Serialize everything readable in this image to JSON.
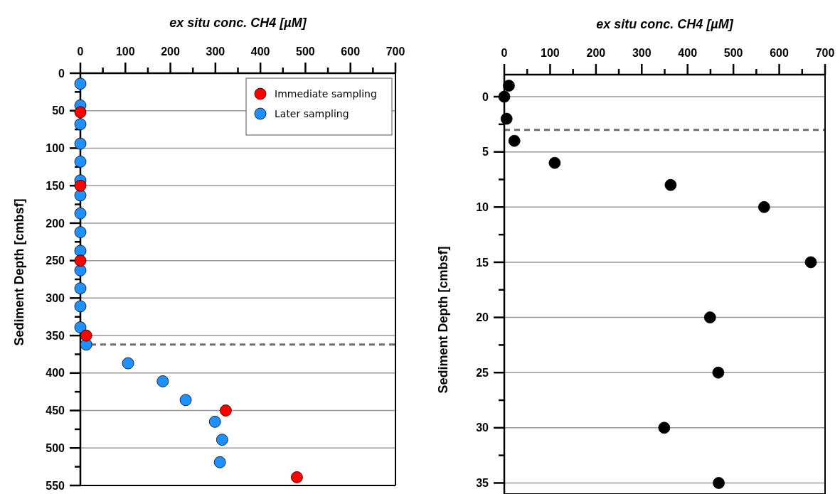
{
  "chart_data": [
    {
      "type": "scatter",
      "xlabel": "ex situ conc. CH4 [µM]",
      "ylabel": "Sediment Depth [cmbsf]",
      "marker": "circle",
      "grid": "y",
      "legend": "top right",
      "xlim": [
        0,
        700
      ],
      "xticks": [
        0,
        {
          "value": 50,
          "label": null
        },
        100,
        {
          "value": 150,
          "label": null
        },
        200,
        {
          "value": 250,
          "label": null
        },
        300,
        {
          "value": 350,
          "label": null
        },
        400,
        {
          "value": 450,
          "label": null
        },
        500,
        {
          "value": 550,
          "label": null
        },
        600,
        {
          "value": 650,
          "label": null
        },
        700
      ],
      "ylim": [
        550,
        0
      ],
      "yticks": [
        0,
        {
          "value": 25,
          "label": null
        },
        50,
        {
          "value": 75,
          "label": null
        },
        100,
        {
          "value": 125,
          "label": null
        },
        150,
        {
          "value": 175,
          "label": null
        },
        200,
        {
          "value": 225,
          "label": null
        },
        250,
        {
          "value": 275,
          "label": null
        },
        300,
        {
          "value": 325,
          "label": null
        },
        350,
        {
          "value": 375,
          "label": null
        },
        400,
        {
          "value": 425,
          "label": null
        },
        450,
        {
          "value": 475,
          "label": null
        },
        500,
        {
          "value": 525,
          "label": null
        },
        550
      ],
      "ref_lines": [
        {
          "axis": "y",
          "value": 362,
          "color": "#707070",
          "line_style": "dashed"
        }
      ],
      "series": [
        {
          "name": "Later sampling",
          "color": "#1e90ff",
          "x": [
            0,
            0,
            0,
            0,
            0,
            0,
            0,
            0,
            0,
            0,
            0,
            0,
            0,
            0,
            13,
            106,
            183,
            234,
            299,
            315,
            310
          ],
          "values": [
            14,
            43,
            68,
            94,
            118,
            143,
            163,
            187,
            212,
            237,
            263,
            287,
            311,
            339,
            362,
            387,
            411,
            436,
            465,
            489,
            519
          ]
        },
        {
          "name": "Immediate sampling",
          "color": "#ff0000",
          "x": [
            0,
            0,
            0,
            13,
            323,
            481
          ],
          "values": [
            52,
            150,
            250,
            350,
            450,
            539
          ]
        }
      ]
    },
    {
      "type": "scatter",
      "xlabel": "ex situ conc. CH4 [µM]",
      "ylabel": "Sediment Depth [cmbsf]",
      "marker": "circle",
      "grid": "y",
      "xlim": [
        0,
        700
      ],
      "xticks": [
        0,
        {
          "value": 50,
          "label": null
        },
        100,
        {
          "value": 150,
          "label": null
        },
        200,
        {
          "value": 250,
          "label": null
        },
        300,
        {
          "value": 350,
          "label": null
        },
        400,
        {
          "value": 450,
          "label": null
        },
        500,
        {
          "value": 550,
          "label": null
        },
        600,
        {
          "value": 650,
          "label": null
        },
        700
      ],
      "ylim": [
        36,
        -2
      ],
      "yticks": [
        0,
        {
          "value": 2.5,
          "label": null
        },
        5,
        {
          "value": 7.5,
          "label": null
        },
        10,
        {
          "value": 12.5,
          "label": null
        },
        15,
        {
          "value": 17.5,
          "label": null
        },
        20,
        {
          "value": 22.5,
          "label": null
        },
        25,
        {
          "value": 27.5,
          "label": null
        },
        30,
        {
          "value": 32.5,
          "label": null
        },
        35
      ],
      "ref_lines": [
        {
          "axis": "y",
          "value": 3,
          "color": "#707070",
          "line_style": "dashed"
        }
      ],
      "series": [
        {
          "color": "#000000",
          "x": [
            10,
            0,
            5,
            22,
            110,
            363,
            567,
            669,
            449,
            467,
            349,
            468
          ],
          "values": [
            -1,
            0,
            2,
            4,
            6,
            8,
            10,
            15,
            20,
            25,
            30,
            35
          ]
        }
      ]
    }
  ]
}
